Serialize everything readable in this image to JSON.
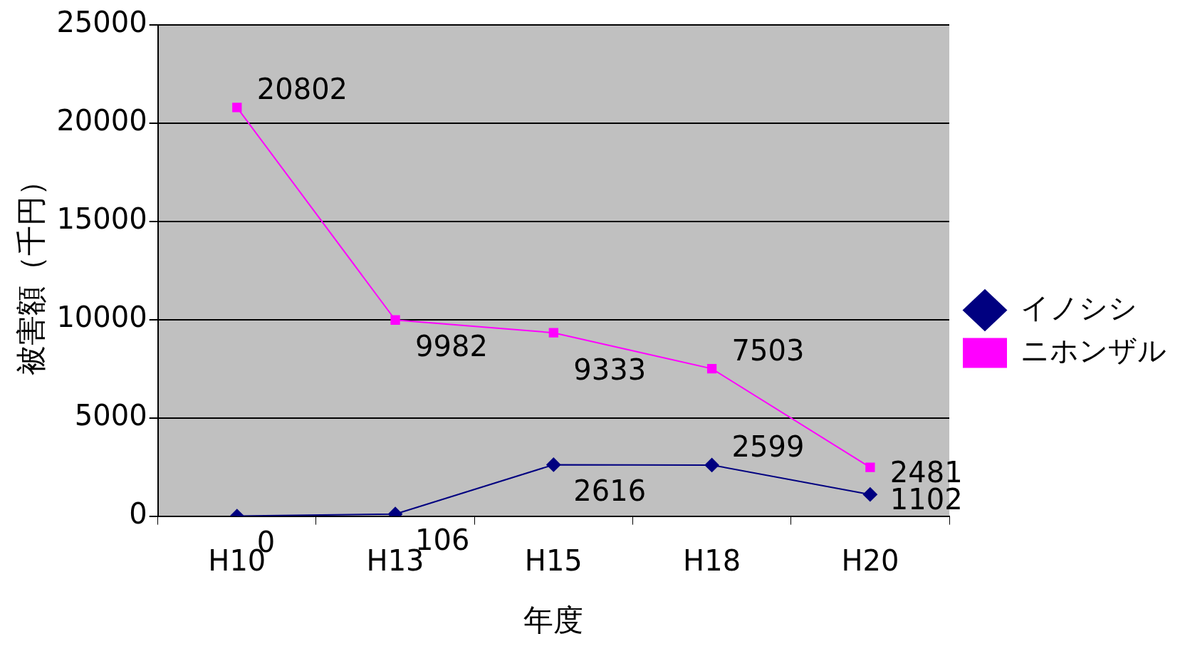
{
  "chart_data": {
    "type": "line",
    "xlabel": "年度",
    "ylabel": "被害額（千円）",
    "categories": [
      "H10",
      "H13",
      "H15",
      "H18",
      "H20"
    ],
    "series": [
      {
        "name": "イノシシ",
        "color": "#000080",
        "marker": "diamond",
        "values": [
          0,
          106,
          2616,
          2599,
          1102
        ]
      },
      {
        "name": "ニホンザル",
        "color": "#ff00ff",
        "marker": "square",
        "values": [
          20802,
          9982,
          9333,
          7503,
          2481
        ]
      }
    ],
    "ylim": [
      0,
      25000
    ],
    "yticks": [
      0,
      5000,
      10000,
      15000,
      20000,
      25000
    ],
    "grid": "y",
    "legend": "right",
    "data_labels": true
  }
}
